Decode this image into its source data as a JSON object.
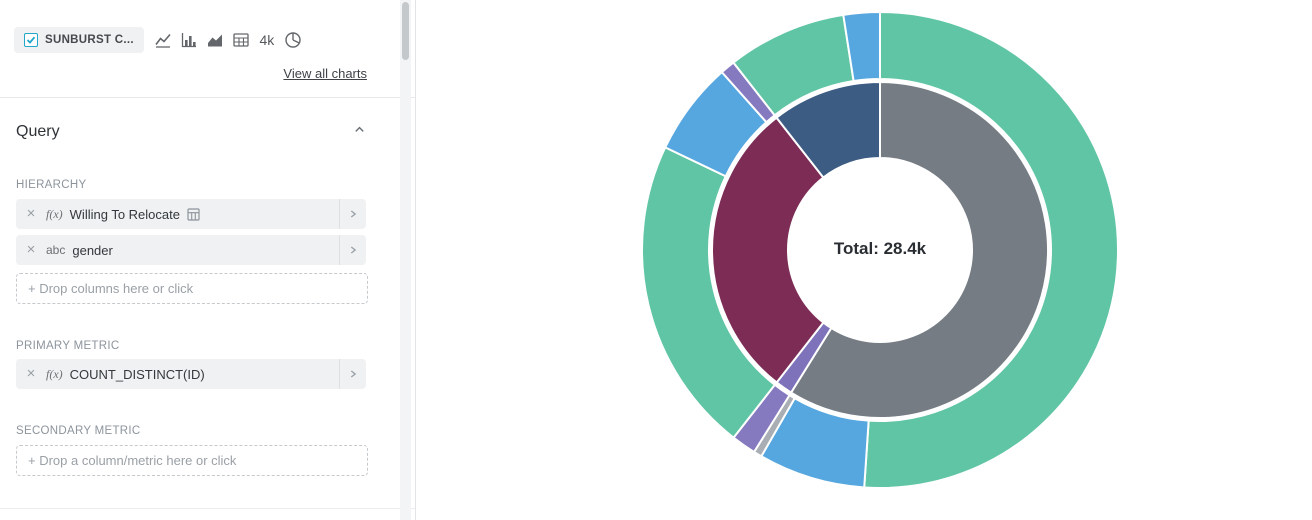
{
  "panel": {
    "viz_pill": {
      "label": "SUNBURST C..."
    },
    "viz_icons": [
      "line-chart-icon",
      "bar-chart-icon",
      "area-chart-icon",
      "table-icon",
      "big-number-icon",
      "pie-chart-icon"
    ],
    "big_number_icon_label": "4k",
    "view_all_label": "View all charts",
    "query_section": {
      "title": "Query"
    },
    "hierarchy": {
      "label": "HIERARCHY",
      "items": [
        {
          "prefix": "f(x)",
          "label": "Willing To Relocate"
        },
        {
          "prefix": "abc",
          "label": "gender"
        }
      ],
      "drop_placeholder": "+ Drop columns here or click"
    },
    "primary_metric": {
      "label": "PRIMARY METRIC",
      "items": [
        {
          "prefix": "f(x)",
          "label": "COUNT_DISTINCT(ID)"
        }
      ]
    },
    "secondary_metric": {
      "label": "SECONDARY METRIC",
      "drop_placeholder": "+ Drop a column/metric here or click"
    }
  },
  "chart_data": {
    "type": "sunburst",
    "center_label": "Total: 28.4k",
    "total": 28400,
    "hierarchy": [
      "Willing To Relocate",
      "gender"
    ],
    "rings": {
      "inner_radius": 92,
      "mid_radius": 168,
      "child_inner_radius": 171,
      "outer_radius": 238
    },
    "nodes": [
      {
        "name": "segment-gray",
        "color": "#757C84",
        "value": 16720,
        "children": [
          {
            "name": "gray-teal",
            "color": "#5FC5A4",
            "value": 14500
          },
          {
            "name": "gray-blue",
            "color": "#56A7DF",
            "value": 2060
          },
          {
            "name": "gray-lightgray-sliver",
            "color": "#A9AEB4",
            "value": 160
          }
        ]
      },
      {
        "name": "segment-purple-sliver",
        "color": "#7E72BB",
        "value": 475,
        "children": [
          {
            "name": "purple-purple",
            "color": "#8579C0",
            "value": 475
          }
        ]
      },
      {
        "name": "segment-maroon",
        "color": "#7D2D55",
        "value": 8205,
        "children": [
          {
            "name": "maroon-teal",
            "color": "#5FC5A4",
            "value": 6120
          },
          {
            "name": "maroon-blue",
            "color": "#56A7DF",
            "value": 1800
          },
          {
            "name": "maroon-purple-sliver",
            "color": "#8579C0",
            "value": 285
          }
        ]
      },
      {
        "name": "segment-steelblue",
        "color": "#3D5C84",
        "value": 3000,
        "children": [
          {
            "name": "steelblue-teal",
            "color": "#5FC5A4",
            "value": 2300
          },
          {
            "name": "steelblue-blue",
            "color": "#56A7DF",
            "value": 700
          }
        ]
      }
    ]
  }
}
